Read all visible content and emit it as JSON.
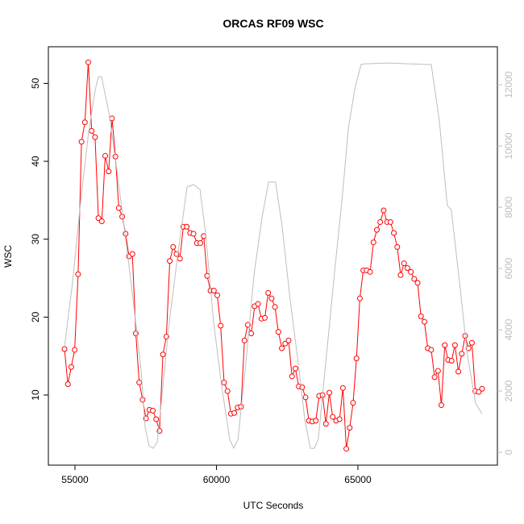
{
  "chart_data": {
    "type": "line",
    "title": "ORCAS RF09 WSC",
    "x_label": "UTC Seconds",
    "y_label": "WSC",
    "xlim": [
      54060,
      69930
    ],
    "xticks": [
      55000,
      60000,
      65000
    ],
    "ylim": [
      1,
      54.7
    ],
    "yticks": [
      10,
      20,
      30,
      40,
      50
    ],
    "y2lim": [
      -420,
      13240
    ],
    "y2ticks": [
      0,
      2000,
      4000,
      6000,
      8000,
      10000,
      12000
    ],
    "series": [
      {
        "color": "#ff0000",
        "markers": true,
        "x": [
          54630,
          54750,
          54870,
          54990,
          55110,
          55230,
          55350,
          55470,
          55590,
          55710,
          55830,
          55950,
          56070,
          56190,
          56310,
          56430,
          56550,
          56670,
          56790,
          56910,
          57030,
          57150,
          57270,
          57390,
          57510,
          57630,
          57750,
          57870,
          57990,
          58110,
          58230,
          58350,
          58470,
          58590,
          58710,
          58830,
          58950,
          59070,
          59190,
          59310,
          59430,
          59550,
          59670,
          59790,
          59910,
          60030,
          60150,
          60270,
          60390,
          60510,
          60630,
          60750,
          60870,
          60990,
          61110,
          61230,
          61350,
          61470,
          61590,
          61710,
          61830,
          61950,
          62070,
          62190,
          62310,
          62430,
          62550,
          62670,
          62790,
          62910,
          63030,
          63150,
          63270,
          63390,
          63510,
          63630,
          63750,
          63870,
          63990,
          64110,
          64230,
          64350,
          64470,
          64590,
          64710,
          64830,
          64950,
          65070,
          65190,
          65310,
          65430,
          65550,
          65670,
          65790,
          65910,
          66030,
          66150,
          66270,
          66390,
          66510,
          66630,
          66750,
          66870,
          66990,
          67110,
          67230,
          67350,
          67470,
          67590,
          67710,
          67830,
          67950,
          68070,
          68190,
          68310,
          68430,
          68550,
          68670,
          68790,
          68910,
          69030,
          69150,
          69270,
          69390
        ],
        "values": [
          15.9,
          11.4,
          13.6,
          15.8,
          25.5,
          42.5,
          45.0,
          52.7,
          43.9,
          43.1,
          32.7,
          32.3,
          40.7,
          38.7,
          45.5,
          40.6,
          34.0,
          32.9,
          30.7,
          27.8,
          28.1,
          17.9,
          11.6,
          9.4,
          7.0,
          8.1,
          8.0,
          6.9,
          5.4,
          15.2,
          17.5,
          27.2,
          29.0,
          28.1,
          27.5,
          31.6,
          31.6,
          30.8,
          30.7,
          29.5,
          29.5,
          30.4,
          25.3,
          23.4,
          23.4,
          22.8,
          18.9,
          11.6,
          10.5,
          7.6,
          7.7,
          8.4,
          8.5,
          17.0,
          19.0,
          17.9,
          21.4,
          21.7,
          19.8,
          19.9,
          23.1,
          22.4,
          21.3,
          18.1,
          16.0,
          16.6,
          17.0,
          12.4,
          13.4,
          11.1,
          11.0,
          9.7,
          6.7,
          6.6,
          6.7,
          9.9,
          10.0,
          6.3,
          10.3,
          7.2,
          6.7,
          6.9,
          10.9,
          3.1,
          5.8,
          9.0,
          14.7,
          22.4,
          26.0,
          26.0,
          25.8,
          29.6,
          31.2,
          32.2,
          33.7,
          32.2,
          32.2,
          30.8,
          29.0,
          25.4,
          26.9,
          26.3,
          25.8,
          24.9,
          24.4,
          20.1,
          19.4,
          16.0,
          15.8,
          12.3,
          13.1,
          8.7,
          16.4,
          14.5,
          14.4,
          16.4,
          13.0,
          15.3,
          17.6,
          16.0,
          16.7,
          10.5,
          10.4,
          10.8
        ]
      },
      {
        "color": "#bebebe",
        "axis": "y2",
        "markers": false,
        "x": [
          54630,
          54915,
          55200,
          55480,
          55710,
          55825,
          55940,
          56200,
          56480,
          56770,
          57050,
          57340,
          57480,
          57620,
          57760,
          57910,
          58050,
          58330,
          58620,
          58960,
          59190,
          59420,
          59620,
          59900,
          60190,
          60470,
          60610,
          60760,
          61040,
          61330,
          61610,
          61840,
          62090,
          62320,
          62600,
          62890,
          63120,
          63320,
          63460,
          63600,
          63890,
          64170,
          64460,
          64660,
          64890,
          65110,
          65230,
          66030,
          66880,
          67450,
          67590,
          67880,
          68160,
          68300,
          68590,
          68870,
          69160,
          69380
        ],
        "values": [
          3450,
          5550,
          8180,
          10420,
          11800,
          12260,
          12260,
          11080,
          9240,
          7130,
          5030,
          2660,
          820,
          210,
          130,
          340,
          1600,
          4240,
          6340,
          8660,
          8740,
          8580,
          7130,
          4240,
          2130,
          420,
          130,
          420,
          2920,
          5820,
          7660,
          8820,
          8820,
          7390,
          5030,
          2920,
          1080,
          130,
          130,
          420,
          3180,
          5820,
          8450,
          10550,
          11870,
          12660,
          12680,
          12710,
          12680,
          12660,
          12660,
          10820,
          8050,
          7920,
          5550,
          3180,
          1600,
          1260
        ]
      }
    ]
  }
}
